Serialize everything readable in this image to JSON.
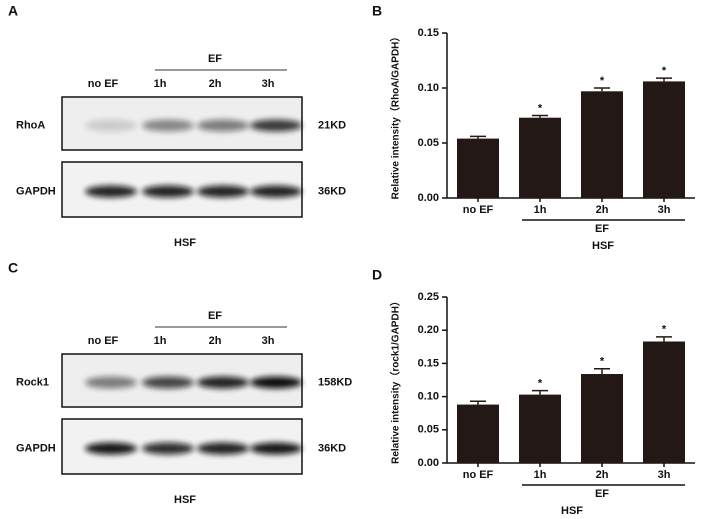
{
  "blots": [
    {
      "label": "A",
      "group_label": "EF",
      "lanes": [
        "no EF",
        "1h",
        "2h",
        "3h"
      ],
      "rows": [
        {
          "name": "RhoA",
          "size": "21KD"
        },
        {
          "name": "GAPDH",
          "size": "36KD"
        }
      ],
      "caption": "HSF"
    },
    {
      "label": "C",
      "group_label": "EF",
      "lanes": [
        "no EF",
        "1h",
        "2h",
        "3h"
      ],
      "rows": [
        {
          "name": "Rock1",
          "size": "158KD"
        },
        {
          "name": "GAPDH",
          "size": "36KD"
        }
      ],
      "caption": "HSF"
    }
  ],
  "chart_data": [
    {
      "type": "bar",
      "label": "B",
      "ylabel": "Relative intensity（RhoA/GAPDH）",
      "categories": [
        "no EF",
        "1h",
        "2h",
        "3h"
      ],
      "values": [
        0.054,
        0.073,
        0.097,
        0.106
      ],
      "errors": [
        0.002,
        0.002,
        0.003,
        0.003
      ],
      "color": "#231815",
      "ylim": [
        0,
        0.15
      ],
      "yticks": [
        {
          "value": 0,
          "label": "0.00"
        },
        {
          "value": 0.05,
          "label": "0.05"
        },
        {
          "value": 0.1,
          "label": "0.10"
        },
        {
          "value": 0.15,
          "label": "0.15"
        }
      ],
      "annotations": [
        {
          "x": "1h",
          "text": "*"
        },
        {
          "x": "2h",
          "text": "*"
        },
        {
          "x": "3h",
          "text": "*"
        }
      ],
      "group_label": "EF",
      "xlabel": "HSF"
    },
    {
      "type": "bar",
      "label": "D",
      "ylabel": "Relative intensity（rock1/GAPDH）",
      "categories": [
        "no EF",
        "1h",
        "2h",
        "3h"
      ],
      "values": [
        0.088,
        0.103,
        0.134,
        0.183
      ],
      "errors": [
        0.005,
        0.006,
        0.008,
        0.007
      ],
      "color": "#231815",
      "ylim": [
        0,
        0.25
      ],
      "yticks": [
        {
          "value": 0,
          "label": "0.00"
        },
        {
          "value": 0.05,
          "label": "0.05"
        },
        {
          "value": 0.1,
          "label": "0.10"
        },
        {
          "value": 0.15,
          "label": "0.15"
        },
        {
          "value": 0.2,
          "label": "0.20"
        },
        {
          "value": 0.25,
          "label": "0.25"
        }
      ],
      "annotations": [
        {
          "x": "1h",
          "text": "*"
        },
        {
          "x": "2h",
          "text": "*"
        },
        {
          "x": "3h",
          "text": "*"
        }
      ],
      "group_label": "EF",
      "xlabel": "HSF"
    }
  ]
}
